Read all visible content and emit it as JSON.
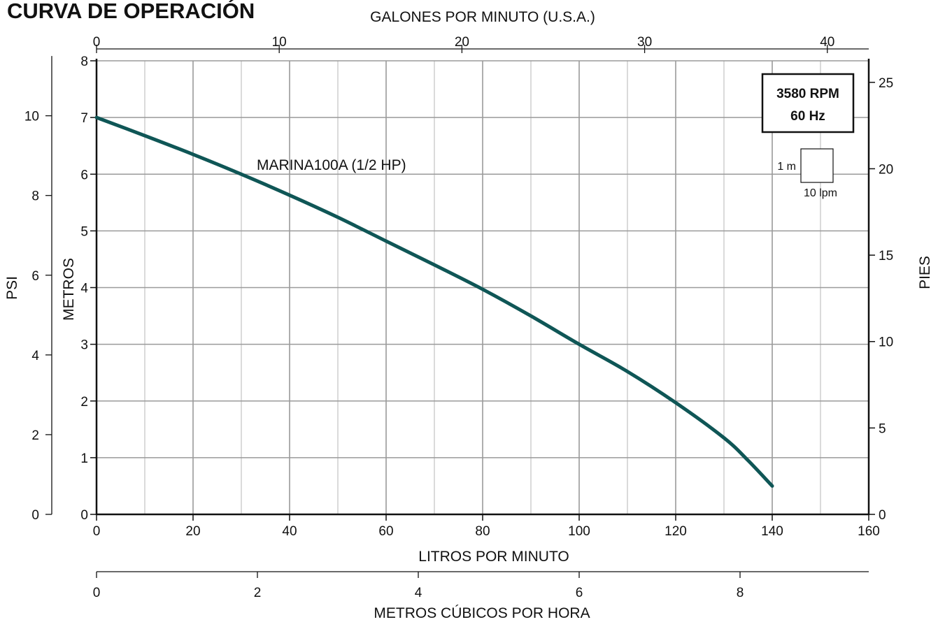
{
  "chart_data": {
    "type": "line",
    "title": "CURVA DE OPERACIÓN",
    "xlabel": "LITROS POR MINUTO",
    "ylabel": "METROS",
    "x2label": "GALONES POR MINUTO (U.S.A.)",
    "x3label": "METROS CÚBICOS POR HORA",
    "y2label": "PIES",
    "y3label": "PSI",
    "xlim": [
      0,
      160
    ],
    "ylim": [
      0,
      8
    ],
    "grid": true,
    "x_ticks": [
      0,
      20,
      40,
      60,
      80,
      100,
      120,
      140,
      160
    ],
    "y_ticks": [
      0,
      1,
      2,
      3,
      4,
      5,
      6,
      7,
      8
    ],
    "top_ticks": [
      0,
      10,
      20,
      30,
      40
    ],
    "pies_ticks": [
      0,
      5,
      10,
      15,
      20,
      25
    ],
    "psi_ticks": [
      0,
      2,
      4,
      6,
      8,
      10
    ],
    "m3h_ticks": [
      0,
      2,
      4,
      6,
      8
    ],
    "series": [
      {
        "name": "MARINA100A (1/2 HP)",
        "color": "#0f5656",
        "x": [
          0,
          10,
          20,
          30,
          40,
          50,
          60,
          70,
          80,
          90,
          100,
          110,
          120,
          130,
          135,
          140
        ],
        "y": [
          7.0,
          6.68,
          6.35,
          6.0,
          5.63,
          5.24,
          4.82,
          4.4,
          3.97,
          3.5,
          3.0,
          2.52,
          1.97,
          1.35,
          0.95,
          0.5
        ]
      }
    ],
    "info_box": [
      "3580 RPM",
      "60 Hz"
    ],
    "scale_legend": {
      "vertical": "1 m",
      "horizontal": "10 lpm"
    }
  }
}
